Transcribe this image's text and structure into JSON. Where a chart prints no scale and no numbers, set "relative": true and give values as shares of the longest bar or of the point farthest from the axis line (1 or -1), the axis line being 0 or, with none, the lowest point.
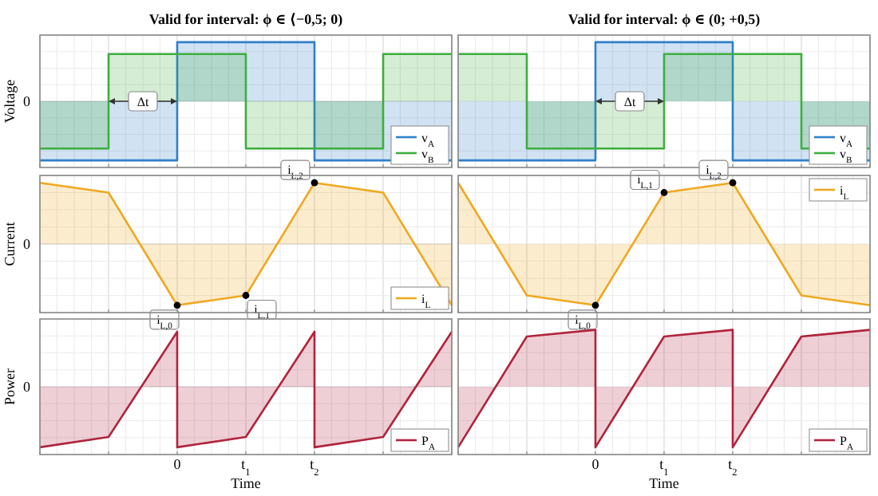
{
  "chart_data": [
    {
      "type": "step",
      "title": "Valid for interval: ϕ ∈ ⟨−0,5; 0)",
      "ylabel": "Voltage",
      "relative": true,
      "xlim": [
        -2,
        4
      ],
      "xticks": [
        {
          "value": -2,
          "label": null
        },
        {
          "value": -1,
          "label": null
        },
        {
          "value": 0,
          "label": null
        },
        {
          "value": 1,
          "label": null
        },
        {
          "value": 2,
          "label": null
        },
        {
          "value": 3,
          "label": null
        },
        {
          "value": 4,
          "label": null
        }
      ],
      "tick_labels": false,
      "grid": true,
      "legend": "bottom right",
      "ref_lines": [
        {
          "axis": "y",
          "value": 0,
          "label": "0"
        }
      ],
      "annotations": [
        {
          "text": "Δt",
          "x": -0.5,
          "y": 0
        }
      ],
      "series": [
        {
          "name": "v$_{A}$",
          "color": "#2f7fc9",
          "x": [
            -2,
            0,
            2,
            4
          ],
          "values": [
            -1,
            1,
            -1,
            -1
          ]
        },
        {
          "name": "v$_{B}$",
          "color": "#3cae3c",
          "x": [
            -2,
            -1,
            1,
            3,
            4
          ],
          "values": [
            -0.8,
            0.8,
            -0.8,
            0.8,
            0.8
          ]
        }
      ]
    },
    {
      "type": "step",
      "title": "Valid for interval: ϕ ∈ (0; +0,5)",
      "relative": true,
      "xlim": [
        -2,
        4
      ],
      "xticks": [
        {
          "value": -2,
          "label": null
        },
        {
          "value": -1,
          "label": null
        },
        {
          "value": 0,
          "label": null
        },
        {
          "value": 1,
          "label": null
        },
        {
          "value": 2,
          "label": null
        },
        {
          "value": 3,
          "label": null
        },
        {
          "value": 4,
          "label": null
        }
      ],
      "tick_labels": false,
      "grid": true,
      "legend": "bottom right",
      "annotations": [
        {
          "text": "Δt",
          "x": 0.5,
          "y": 0
        }
      ],
      "series": [
        {
          "name": "v$_{A}$",
          "color": "#2f7fc9",
          "x": [
            -2,
            0,
            2,
            4
          ],
          "values": [
            -1,
            1,
            -1,
            -1
          ]
        },
        {
          "name": "v$_{B}$",
          "color": "#3cae3c",
          "x": [
            -2,
            -1,
            1,
            3,
            4
          ],
          "values": [
            0.8,
            -0.8,
            0.8,
            -0.8,
            -0.8
          ]
        }
      ]
    },
    {
      "type": "area",
      "ylabel": "Current",
      "relative": true,
      "xlim": [
        -2,
        4
      ],
      "xticks": [
        {
          "value": -2,
          "label": null
        },
        {
          "value": -1,
          "label": null
        },
        {
          "value": 0,
          "label": null
        },
        {
          "value": 1,
          "label": null
        },
        {
          "value": 2,
          "label": null
        },
        {
          "value": 3,
          "label": null
        },
        {
          "value": 4,
          "label": null
        }
      ],
      "tick_labels": false,
      "grid": true,
      "legend": "bottom right",
      "ref_lines": [
        {
          "axis": "y",
          "value": 0,
          "label": "0"
        }
      ],
      "annotations": [
        {
          "text": "i$_{L,0}$",
          "x": 0,
          "y": -1
        },
        {
          "text": "i$_{L,1}$",
          "x": 1,
          "y": -0.84
        },
        {
          "text": "i$_{L,2}$",
          "x": 2,
          "y": 1
        }
      ],
      "series": [
        {
          "name": "i$_{L}$",
          "color": "#f0a820",
          "x": [
            -2,
            -1,
            0,
            1,
            2,
            3,
            4
          ],
          "values": [
            1,
            0.84,
            -1,
            -0.84,
            1,
            0.84,
            -1
          ]
        }
      ]
    },
    {
      "type": "area",
      "relative": true,
      "xlim": [
        -2,
        4
      ],
      "xticks": [
        {
          "value": -2,
          "label": null
        },
        {
          "value": -1,
          "label": null
        },
        {
          "value": 0,
          "label": null
        },
        {
          "value": 1,
          "label": null
        },
        {
          "value": 2,
          "label": null
        },
        {
          "value": 3,
          "label": null
        },
        {
          "value": 4,
          "label": null
        }
      ],
      "tick_labels": false,
      "grid": true,
      "legend": "top right",
      "annotations": [
        {
          "text": "i$_{L,0}$",
          "x": 0,
          "y": -1
        },
        {
          "text": "i$_{L,1}$",
          "x": 1,
          "y": 0.84
        },
        {
          "text": "i$_{L,2}$",
          "x": 2,
          "y": 1
        }
      ],
      "series": [
        {
          "name": "i$_{L}$",
          "color": "#f0a820",
          "x": [
            -2,
            -1,
            0,
            1,
            2,
            3,
            4
          ],
          "values": [
            1,
            -0.84,
            -1,
            0.84,
            1,
            -0.84,
            -1
          ]
        }
      ]
    },
    {
      "type": "area",
      "ylabel": "Power",
      "xlabel": "Time",
      "relative": true,
      "xlim": [
        -2,
        4
      ],
      "xticks": [
        {
          "value": -2,
          "label": null
        },
        {
          "value": -1,
          "label": null
        },
        {
          "value": 0,
          "label": "0"
        },
        {
          "value": 1,
          "label": "t$_{1}$"
        },
        {
          "value": 2,
          "label": "t$_{2}$"
        },
        {
          "value": 3,
          "label": null
        },
        {
          "value": 4,
          "label": null
        }
      ],
      "tick_labels": "x",
      "grid": true,
      "legend": "bottom right",
      "ref_lines": [
        {
          "axis": "y",
          "value": 0,
          "label": "0"
        }
      ],
      "series": [
        {
          "name": "P$_{A}$",
          "color": "#b0243e",
          "x": [
            -2,
            -1,
            0,
            0,
            1,
            2,
            2,
            3,
            4
          ],
          "values": [
            -1,
            -0.83,
            0.91,
            -1,
            -0.83,
            0.91,
            -1,
            -0.83,
            0.91
          ]
        }
      ]
    },
    {
      "type": "area",
      "xlabel": "Time",
      "relative": true,
      "xlim": [
        -2,
        4
      ],
      "xticks": [
        {
          "value": -2,
          "label": null
        },
        {
          "value": -1,
          "label": null
        },
        {
          "value": 0,
          "label": "0"
        },
        {
          "value": 1,
          "label": "t$_{1}$"
        },
        {
          "value": 2,
          "label": "t$_{2}$"
        },
        {
          "value": 3,
          "label": null
        },
        {
          "value": 4,
          "label": null
        }
      ],
      "tick_labels": "x",
      "grid": true,
      "legend": "bottom right",
      "series": [
        {
          "name": "P$_{A}$",
          "color": "#b0243e",
          "x": [
            -2,
            -1,
            0,
            0,
            1,
            2,
            2,
            3,
            4
          ],
          "values": [
            -1,
            0.83,
            0.94,
            -1,
            0.83,
            0.94,
            -1,
            0.83,
            0.94
          ]
        }
      ]
    }
  ]
}
